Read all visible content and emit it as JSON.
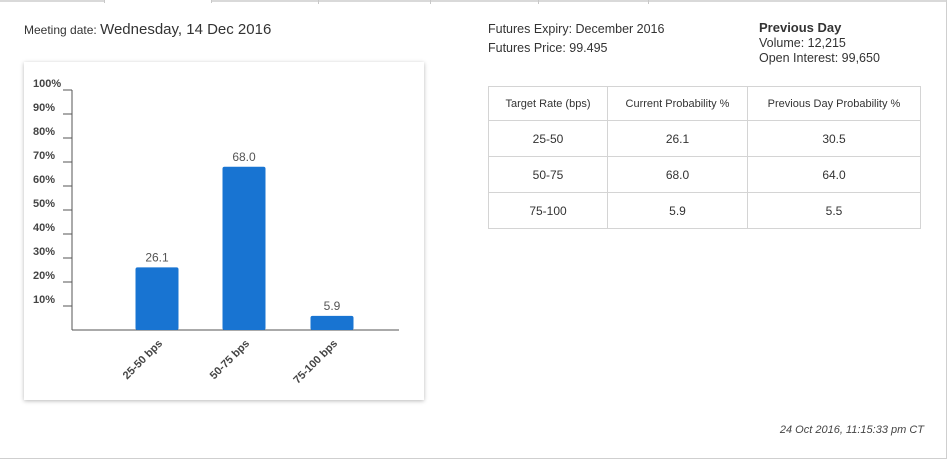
{
  "meeting": {
    "label": "Meeting date:",
    "value": "Wednesday, 14 Dec 2016"
  },
  "futures": {
    "expiry": "Futures Expiry: December 2016",
    "price": "Futures Price: 99.495"
  },
  "previous_day": {
    "title": "Previous Day",
    "volume": "Volume: 12,215",
    "open_interest": "Open Interest: 99,650"
  },
  "table": {
    "headers": [
      "Target Rate (bps)",
      "Current Probability %",
      "Previous Day Probability %"
    ],
    "rows": [
      [
        "25-50",
        "26.1",
        "30.5"
      ],
      [
        "50-75",
        "68.0",
        "64.0"
      ],
      [
        "75-100",
        "5.9",
        "5.5"
      ]
    ]
  },
  "timestamp": "24 Oct 2016, 11:15:33 pm CT",
  "colors": {
    "bar": "#1874d2",
    "axis": "#555555"
  },
  "chart_data": {
    "type": "bar",
    "categories": [
      "25-50 bps",
      "50-75 bps",
      "75-100 bps"
    ],
    "values": [
      26.1,
      68.0,
      5.9
    ],
    "data_labels": [
      "26.1",
      "68.0",
      "5.9"
    ],
    "title": "",
    "xlabel": "",
    "ylabel": "",
    "ylim": [
      0,
      100
    ],
    "yticks": [
      "10%",
      "20%",
      "30%",
      "40%",
      "50%",
      "60%",
      "70%",
      "80%",
      "90%",
      "100%"
    ],
    "grid": false,
    "legend": "none"
  }
}
